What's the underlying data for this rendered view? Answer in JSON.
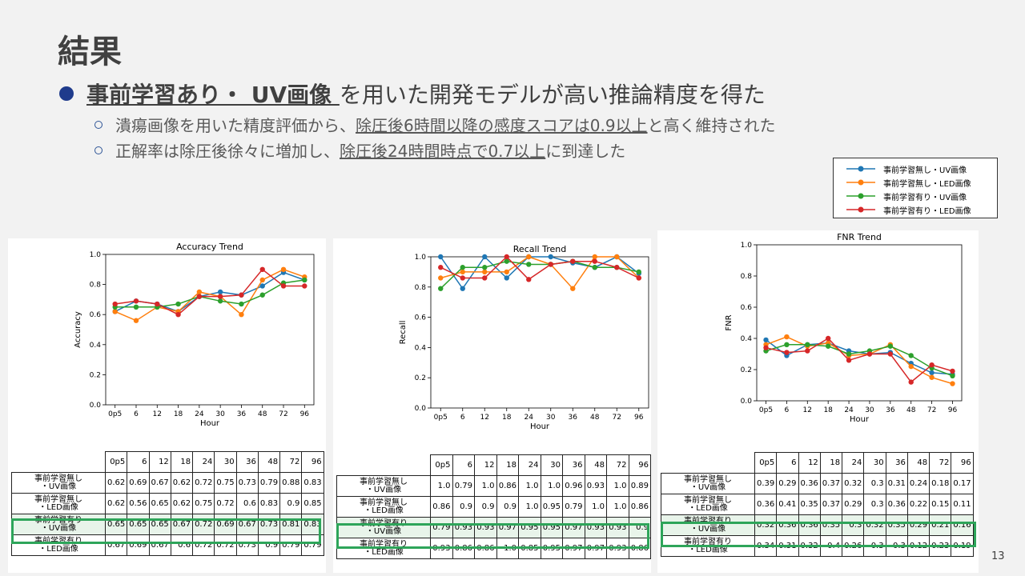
{
  "title": "結果",
  "bullet": {
    "emph": "事前学習あり・ UV画像 ",
    "rest": "を用いた開発モデルが高い推論精度を得た"
  },
  "sub1": {
    "a": "潰瘍画像を用いた精度評価から、",
    "b": "除圧後6時間以降の感度スコアは",
    "c": "0.9以上",
    "d": "と高く維持された"
  },
  "sub2": {
    "a": "正解率は除圧後徐々に増加し、",
    "b": "除圧後24時間時点で",
    "c": "0.7以上",
    "d": "に到達した"
  },
  "page_number": "13",
  "legend": [
    {
      "label": "事前学習無し・UV画像",
      "color": "#1f77b4"
    },
    {
      "label": "事前学習無し・LED画像",
      "color": "#ff7f0e"
    },
    {
      "label": "事前学習有り・UV画像",
      "color": "#2ca02c"
    },
    {
      "label": "事前学習有り・LED画像",
      "color": "#d62728"
    }
  ],
  "row_labels": [
    [
      "事前学習無し",
      "・UV画像"
    ],
    [
      "事前学習無し",
      "・LED画像"
    ],
    [
      "事前学習有り",
      "・UV画像"
    ],
    [
      "事前学習有り",
      "・LED画像"
    ]
  ],
  "chart_data": [
    {
      "type": "line",
      "title": "Accuracy Trend",
      "xlabel": "Hour",
      "ylabel": "Accuracy",
      "ylim": [
        0,
        1
      ],
      "yticks": [
        "0.0",
        "0.2",
        "0.4",
        "0.6",
        "0.8",
        "1.0"
      ],
      "categories": [
        "0p5",
        "6",
        "12",
        "18",
        "24",
        "30",
        "36",
        "48",
        "72",
        "96"
      ],
      "series": [
        {
          "name": "事前学習無し・UV画像",
          "values": [
            0.62,
            0.69,
            0.67,
            0.62,
            0.72,
            0.75,
            0.73,
            0.79,
            0.88,
            0.83
          ]
        },
        {
          "name": "事前学習無し・LED画像",
          "values": [
            0.62,
            0.56,
            0.65,
            0.62,
            0.75,
            0.72,
            0.6,
            0.83,
            0.9,
            0.85
          ]
        },
        {
          "name": "事前学習有り・UV画像",
          "values": [
            0.65,
            0.65,
            0.65,
            0.67,
            0.72,
            0.69,
            0.67,
            0.73,
            0.81,
            0.83
          ]
        },
        {
          "name": "事前学習有り・LED画像",
          "values": [
            0.67,
            0.69,
            0.67,
            0.6,
            0.72,
            0.72,
            0.73,
            0.9,
            0.79,
            0.79
          ]
        }
      ],
      "table_values": [
        [
          "0.62",
          "0.69",
          "0.67",
          "0.62",
          "0.72",
          "0.75",
          "0.73",
          "0.79",
          "0.88",
          "0.83"
        ],
        [
          "0.62",
          "0.56",
          "0.65",
          "0.62",
          "0.75",
          "0.72",
          "0.6",
          "0.83",
          "0.9",
          "0.85"
        ],
        [
          "0.65",
          "0.65",
          "0.65",
          "0.67",
          "0.72",
          "0.69",
          "0.67",
          "0.73",
          "0.81",
          "0.83"
        ],
        [
          "0.67",
          "0.69",
          "0.67",
          "0.6",
          "0.72",
          "0.72",
          "0.73",
          "0.9",
          "0.79",
          "0.79"
        ]
      ],
      "highlight_row": 2
    },
    {
      "type": "line",
      "title": "Recall Trend",
      "xlabel": "Hour",
      "ylabel": "Recall",
      "ylim": [
        0,
        1
      ],
      "yticks": [
        "0.0",
        "0.2",
        "0.4",
        "0.6",
        "0.8",
        "1.0"
      ],
      "categories": [
        "0p5",
        "6",
        "12",
        "18",
        "24",
        "30",
        "36",
        "48",
        "72",
        "96"
      ],
      "series": [
        {
          "name": "事前学習無し・UV画像",
          "values": [
            1.0,
            0.79,
            1.0,
            0.86,
            1.0,
            1.0,
            0.96,
            0.93,
            1.0,
            0.89
          ]
        },
        {
          "name": "事前学習無し・LED画像",
          "values": [
            0.86,
            0.9,
            0.9,
            0.9,
            1.0,
            0.95,
            0.79,
            1.0,
            1.0,
            0.86
          ]
        },
        {
          "name": "事前学習有り・UV画像",
          "values": [
            0.79,
            0.93,
            0.93,
            0.97,
            0.95,
            0.95,
            0.97,
            0.93,
            0.93,
            0.9
          ]
        },
        {
          "name": "事前学習有り・LED画像",
          "values": [
            0.93,
            0.86,
            0.86,
            1.0,
            0.85,
            0.95,
            0.97,
            0.97,
            0.93,
            0.86
          ]
        }
      ],
      "table_values": [
        [
          "1.0",
          "0.79",
          "1.0",
          "0.86",
          "1.0",
          "1.0",
          "0.96",
          "0.93",
          "1.0",
          "0.89"
        ],
        [
          "0.86",
          "0.9",
          "0.9",
          "0.9",
          "1.0",
          "0.95",
          "0.79",
          "1.0",
          "1.0",
          "0.86"
        ],
        [
          "0.79",
          "0.93",
          "0.93",
          "0.97",
          "0.95",
          "0.95",
          "0.97",
          "0.93",
          "0.93",
          "0.9"
        ],
        [
          "0.93",
          "0.86",
          "0.86",
          "1.0",
          "0.85",
          "0.95",
          "0.97",
          "0.97",
          "0.93",
          "0.86"
        ]
      ],
      "highlight_row": 2
    },
    {
      "type": "line",
      "title": "FNR Trend",
      "xlabel": "Hour",
      "ylabel": "FNR",
      "ylim": [
        0,
        1
      ],
      "yticks": [
        "0.0",
        "0.2",
        "0.4",
        "0.6",
        "0.8",
        "1.0"
      ],
      "categories": [
        "0p5",
        "6",
        "12",
        "18",
        "24",
        "30",
        "36",
        "48",
        "72",
        "96"
      ],
      "series": [
        {
          "name": "事前学習無し・UV画像",
          "values": [
            0.39,
            0.29,
            0.36,
            0.37,
            0.32,
            0.3,
            0.31,
            0.24,
            0.18,
            0.17
          ]
        },
        {
          "name": "事前学習無し・LED画像",
          "values": [
            0.36,
            0.41,
            0.35,
            0.37,
            0.29,
            0.3,
            0.36,
            0.22,
            0.15,
            0.11
          ]
        },
        {
          "name": "事前学習有り・UV画像",
          "values": [
            0.32,
            0.36,
            0.36,
            0.35,
            0.3,
            0.32,
            0.35,
            0.29,
            0.21,
            0.16
          ]
        },
        {
          "name": "事前学習有り・LED画像",
          "values": [
            0.34,
            0.31,
            0.32,
            0.4,
            0.26,
            0.3,
            0.3,
            0.12,
            0.23,
            0.19
          ]
        }
      ],
      "table_values": [
        [
          "0.39",
          "0.29",
          "0.36",
          "0.37",
          "0.32",
          "0.3",
          "0.31",
          "0.24",
          "0.18",
          "0.17"
        ],
        [
          "0.36",
          "0.41",
          "0.35",
          "0.37",
          "0.29",
          "0.3",
          "0.36",
          "0.22",
          "0.15",
          "0.11"
        ],
        [
          "0.32",
          "0.36",
          "0.36",
          "0.35",
          "0.3",
          "0.32",
          "0.35",
          "0.29",
          "0.21",
          "0.16"
        ],
        [
          "0.34",
          "0.31",
          "0.32",
          "0.4",
          "0.26",
          "0.3",
          "0.3",
          "0.12",
          "0.23",
          "0.19"
        ]
      ],
      "highlight_row": 2
    }
  ]
}
